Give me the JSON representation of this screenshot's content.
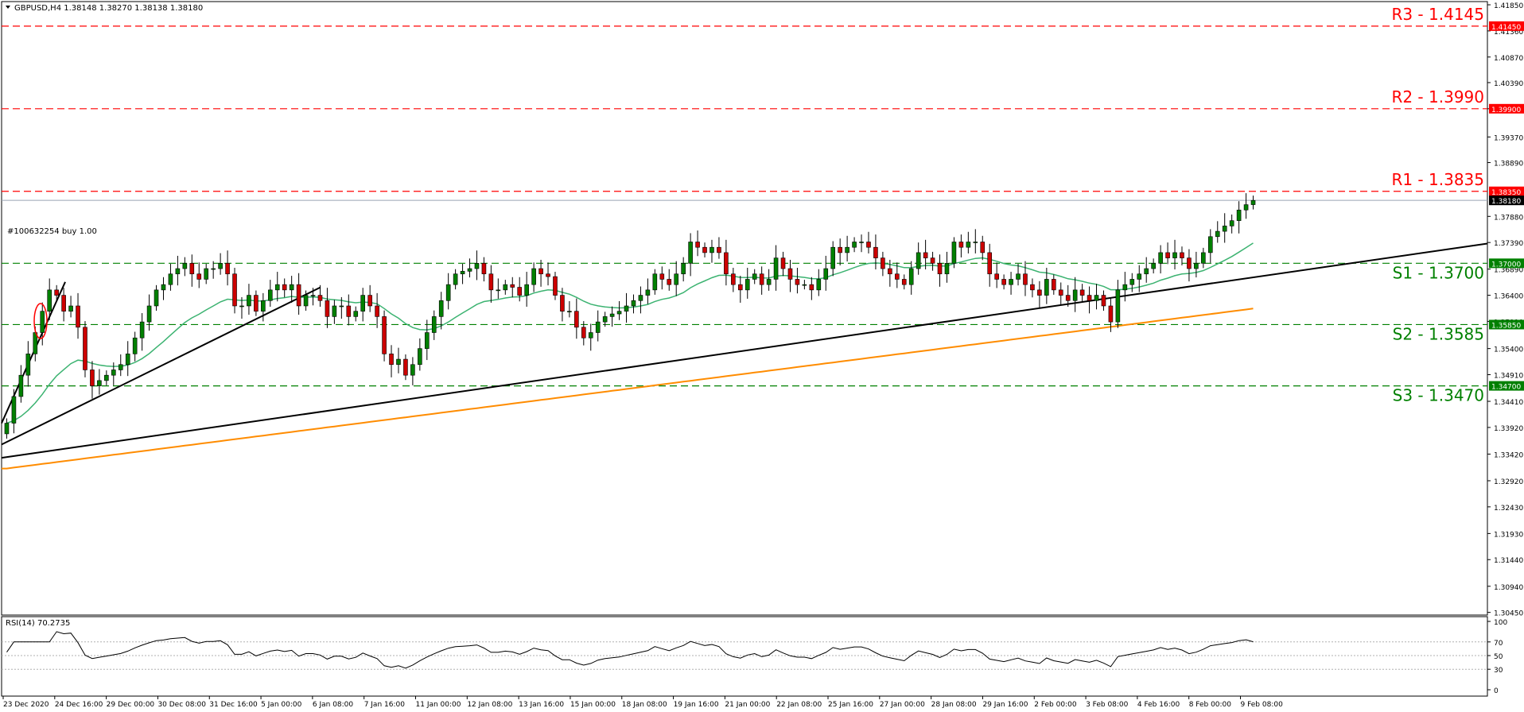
{
  "header": {
    "symbol_line": "GBPUSD,H4  1.38148 1.38270 1.38138 1.38180",
    "order_label": "#100632254 buy 1.00",
    "rsi_label": "RSI(14) 70.2735"
  },
  "levels": [
    {
      "name": "R3",
      "label": "R3 - 1.4145",
      "price": 1.4145,
      "tag": "1.41450",
      "color": "#ff0000"
    },
    {
      "name": "R2",
      "label": "R2 - 1.3990",
      "price": 1.399,
      "tag": "1.39900",
      "color": "#ff0000"
    },
    {
      "name": "R1",
      "label": "R1 - 1.3835",
      "price": 1.3835,
      "tag": "1.38350",
      "color": "#ff0000"
    },
    {
      "name": "S1",
      "label": "S1 - 1.3700",
      "price": 1.37,
      "tag": "1.37000",
      "color": "#008000"
    },
    {
      "name": "S2",
      "label": "S2 - 1.3585",
      "price": 1.3585,
      "tag": "1.35850",
      "color": "#008000"
    },
    {
      "name": "S3",
      "label": "S3 - 1.3470",
      "price": 1.347,
      "tag": "1.34700",
      "color": "#008000"
    }
  ],
  "current_price": {
    "price": 1.3818,
    "tag": "1.38180"
  },
  "colors": {
    "bull": "#008000",
    "bear": "#cc0000",
    "ema_fast": "#3cb371",
    "ema_slow": "#ff8c00",
    "trendline": "#000000"
  },
  "chart_data": [
    {
      "type": "candlestick",
      "title": "GBPUSD,H4",
      "ylim": [
        1.304,
        1.4191
      ],
      "y_ticks": [
        "1.41850",
        "1.41360",
        "1.40870",
        "1.40390",
        "1.39900",
        "1.39370",
        "1.38890",
        "1.37880",
        "1.37390",
        "1.36890",
        "1.36400",
        "1.35910",
        "1.35400",
        "1.34910",
        "1.34410",
        "1.33920",
        "1.33420",
        "1.32920",
        "1.32430",
        "1.31930",
        "1.31440",
        "1.30940",
        "1.30450"
      ],
      "x_ticks": [
        "23 Dec 2020",
        "24 Dec 16:00",
        "29 Dec 00:00",
        "30 Dec 08:00",
        "31 Dec 16:00",
        "5 Jan 00:00",
        "6 Jan 08:00",
        "7 Jan 16:00",
        "11 Jan 00:00",
        "12 Jan 08:00",
        "13 Jan 16:00",
        "15 Jan 00:00",
        "18 Jan 08:00",
        "19 Jan 16:00",
        "21 Jan 00:00",
        "22 Jan 08:00",
        "25 Jan 16:00",
        "27 Jan 00:00",
        "28 Jan 08:00",
        "29 Jan 16:00",
        "2 Feb 00:00",
        "3 Feb 08:00",
        "4 Feb 16:00",
        "8 Feb 00:00",
        "9 Feb 08:00"
      ],
      "closes": [
        1.34,
        1.345,
        1.349,
        1.353,
        1.357,
        1.361,
        1.365,
        1.364,
        1.361,
        1.362,
        1.358,
        1.35,
        1.347,
        1.348,
        1.349,
        1.35,
        1.351,
        1.353,
        1.356,
        1.359,
        1.362,
        1.365,
        1.366,
        1.368,
        1.369,
        1.37,
        1.368,
        1.367,
        1.369,
        1.369,
        1.37,
        1.368,
        1.362,
        1.362,
        1.364,
        1.361,
        1.363,
        1.365,
        1.366,
        1.365,
        1.366,
        1.362,
        1.364,
        1.364,
        1.363,
        1.36,
        1.362,
        1.362,
        1.36,
        1.361,
        1.364,
        1.362,
        1.36,
        1.353,
        1.351,
        1.352,
        1.349,
        1.351,
        1.354,
        1.357,
        1.36,
        1.363,
        1.366,
        1.368,
        1.3685,
        1.369,
        1.37,
        1.368,
        1.365,
        1.365,
        1.366,
        1.3655,
        1.364,
        1.366,
        1.369,
        1.368,
        1.3675,
        1.364,
        1.361,
        1.361,
        1.358,
        1.356,
        1.357,
        1.359,
        1.36,
        1.3605,
        1.361,
        1.362,
        1.363,
        1.364,
        1.365,
        1.368,
        1.367,
        1.366,
        1.368,
        1.37,
        1.374,
        1.373,
        1.372,
        1.373,
        1.372,
        1.368,
        1.366,
        1.365,
        1.367,
        1.368,
        1.366,
        1.367,
        1.371,
        1.369,
        1.367,
        1.366,
        1.366,
        1.365,
        1.367,
        1.369,
        1.373,
        1.372,
        1.373,
        1.374,
        1.374,
        1.373,
        1.371,
        1.369,
        1.368,
        1.367,
        1.366,
        1.369,
        1.372,
        1.371,
        1.37,
        1.368,
        1.37,
        1.374,
        1.373,
        1.374,
        1.374,
        1.372,
        1.368,
        1.367,
        1.366,
        1.367,
        1.368,
        1.366,
        1.365,
        1.364,
        1.367,
        1.365,
        1.364,
        1.363,
        1.365,
        1.364,
        1.363,
        1.364,
        1.362,
        1.359,
        1.365,
        1.366,
        1.367,
        1.368,
        1.369,
        1.37,
        1.372,
        1.371,
        1.372,
        1.371,
        1.369,
        1.37,
        1.372,
        1.375,
        1.376,
        1.377,
        1.378,
        1.38,
        1.381,
        1.3818
      ]
    },
    {
      "type": "line",
      "title": "RSI(14)",
      "ylim": [
        0,
        100
      ],
      "y_ticks": [
        "100",
        "70",
        "50",
        "30",
        "0"
      ],
      "current": 70.2735
    }
  ]
}
